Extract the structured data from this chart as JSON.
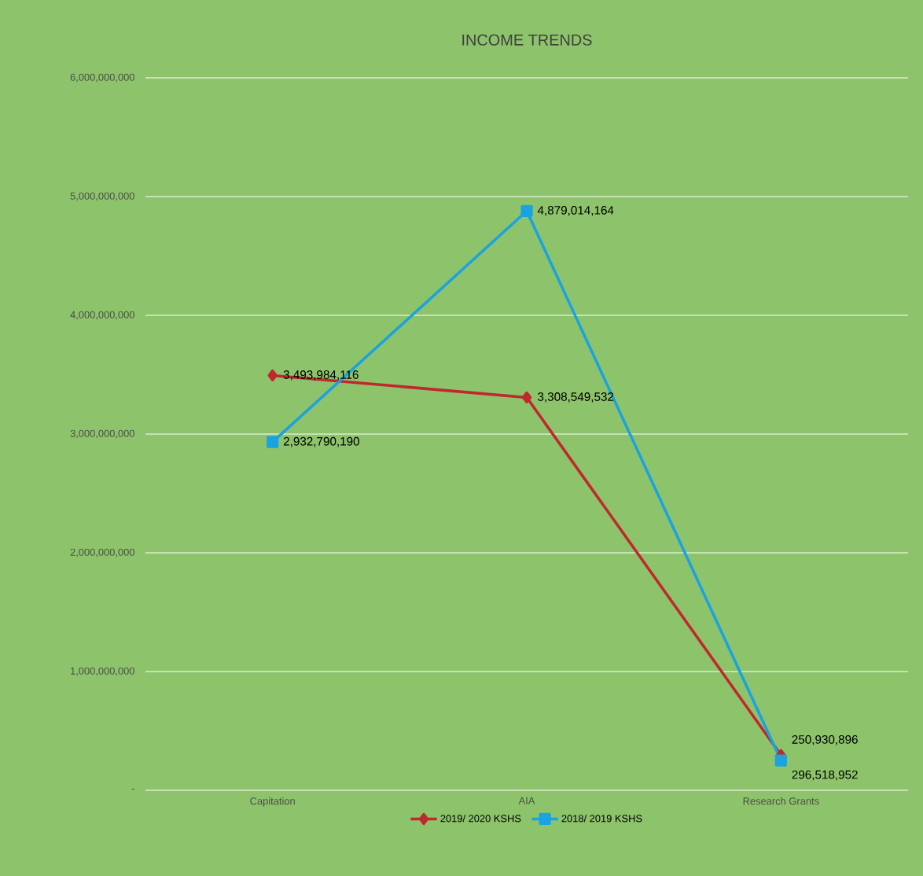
{
  "chart_data": {
    "type": "line",
    "title": "INCOME TRENDS",
    "categories": [
      "Capitation",
      "AIA",
      "Research Grants"
    ],
    "series": [
      {
        "name": "2019/ 2020 KSHS",
        "color": "#c0282d",
        "marker": "diamond",
        "values": [
          3493984116,
          3308549532,
          296518952
        ],
        "value_labels": [
          "3,493,984,116",
          "3,308,549,532",
          "296,518,952"
        ]
      },
      {
        "name": "2018/ 2019 KSHS",
        "color": "#1aa3e0",
        "marker": "square",
        "values": [
          2932790190,
          4879014164,
          250930896
        ],
        "value_labels": [
          "2,932,790,190",
          "4,879,014,164",
          "250,930,896"
        ]
      }
    ],
    "ylim": [
      0,
      6000000000
    ],
    "yticks": [
      {
        "value": 0,
        "label": "-"
      },
      {
        "value": 1000000000,
        "label": "1,000,000,000"
      },
      {
        "value": 2000000000,
        "label": "2,000,000,000"
      },
      {
        "value": 3000000000,
        "label": "3,000,000,000"
      },
      {
        "value": 4000000000,
        "label": "4,000,000,000"
      },
      {
        "value": 5000000000,
        "label": "5,000,000,000"
      },
      {
        "value": 6000000000,
        "label": "6,000,000,000"
      }
    ],
    "grid": "y",
    "legend": "bottom"
  }
}
